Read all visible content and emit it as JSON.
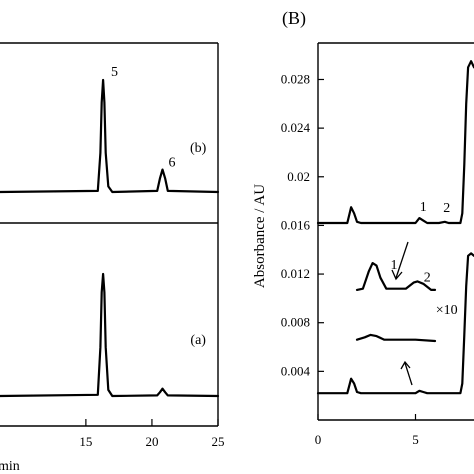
{
  "chart_data": [
    {
      "panel": "A",
      "type": "line",
      "xlabel_fragment": "min",
      "x_ticks": [
        15,
        20,
        25
      ],
      "xlim": [
        8.5,
        25
      ],
      "series": [
        {
          "label": "(b)",
          "x": [
            8.5,
            15.9,
            16.1,
            16.2,
            16.3,
            16.4,
            16.5,
            16.7,
            17.0,
            20.4,
            20.6,
            20.8,
            21.0,
            21.2,
            25
          ],
          "y": [
            0,
            0.01,
            0.35,
            0.8,
            1.0,
            0.8,
            0.35,
            0.05,
            0,
            0.01,
            0.12,
            0.2,
            0.12,
            0.01,
            0
          ]
        },
        {
          "label": "(a)",
          "x": [
            8.5,
            15.9,
            16.1,
            16.2,
            16.3,
            16.4,
            16.5,
            16.7,
            17.0,
            20.4,
            20.6,
            20.8,
            21.0,
            21.2,
            25
          ],
          "y": [
            0,
            0.01,
            0.4,
            0.85,
            1.0,
            0.85,
            0.4,
            0.05,
            0,
            0.005,
            0.03,
            0.06,
            0.03,
            0.005,
            0
          ]
        }
      ],
      "annotations": [
        {
          "text": "5",
          "x": 16.3,
          "series": 0
        },
        {
          "text": "6",
          "x": 20.8,
          "series": 0
        },
        {
          "text": "(b)",
          "x": 23.5,
          "series": 0
        },
        {
          "text": "(a)",
          "x": 23.5,
          "series": 1
        }
      ]
    },
    {
      "panel": "B",
      "title": "(B)",
      "type": "line",
      "ylabel": "Absorbance / AU",
      "xlim": [
        0,
        8
      ],
      "ylim": [
        0,
        0.031
      ],
      "x_ticks": [
        0,
        5
      ],
      "y_ticks": [
        0.004,
        0.008,
        0.012,
        0.016,
        0.02,
        0.024,
        0.028
      ],
      "y_tick_labels": [
        "0.004",
        "0.008",
        "0.012",
        "0.016",
        "0.02",
        "0.024",
        "0.028"
      ],
      "series": [
        {
          "x": [
            0,
            1.5,
            1.7,
            1.85,
            2.0,
            2.2,
            3.0,
            5.0,
            5.2,
            5.4,
            5.6,
            6.2,
            6.5,
            6.7,
            7.3,
            7.4,
            7.5,
            7.6,
            7.7,
            7.85,
            8.0
          ],
          "y": [
            0.0162,
            0.0162,
            0.0175,
            0.017,
            0.0163,
            0.0162,
            0.0162,
            0.0162,
            0.0166,
            0.0164,
            0.0162,
            0.0162,
            0.0163,
            0.0162,
            0.0162,
            0.017,
            0.021,
            0.026,
            0.029,
            0.0295,
            0.029
          ]
        },
        {
          "x": [
            0,
            1.5,
            1.7,
            1.85,
            2.0,
            2.2,
            3.0,
            5.0,
            5.2,
            5.4,
            5.6,
            7.3,
            7.4,
            7.5,
            7.6,
            7.7,
            7.85,
            8.0
          ],
          "y": [
            0.0022,
            0.0022,
            0.0034,
            0.003,
            0.0023,
            0.0022,
            0.0022,
            0.0022,
            0.0024,
            0.0023,
            0.0022,
            0.0022,
            0.003,
            0.007,
            0.011,
            0.0135,
            0.0137,
            0.0135
          ],
          "annotation": "arrow points to this trace near x=4.6"
        }
      ],
      "insets": [
        {
          "label": "×10",
          "x": [
            2.0,
            2.3,
            2.6,
            2.8,
            3.0,
            3.2,
            3.5,
            4.0,
            4.5,
            4.9,
            5.1,
            5.4,
            5.8,
            6.0
          ],
          "y": [
            0.0107,
            0.0108,
            0.0122,
            0.0129,
            0.0127,
            0.0117,
            0.0108,
            0.0108,
            0.0108,
            0.0113,
            0.0114,
            0.0112,
            0.0107,
            0.0107
          ]
        },
        {
          "x": [
            2.0,
            2.4,
            2.7,
            3.0,
            3.4,
            4.0,
            5.0,
            6.0
          ],
          "y": [
            0.0066,
            0.0068,
            0.007,
            0.0069,
            0.0066,
            0.0066,
            0.0066,
            0.0065
          ]
        }
      ],
      "annotations": [
        {
          "text": "1",
          "x": 5.4,
          "y": 0.0172
        },
        {
          "text": "2",
          "x": 6.6,
          "y": 0.0171
        },
        {
          "text": "1",
          "x": 3.9,
          "y": 0.0124
        },
        {
          "text": "2",
          "x": 5.6,
          "y": 0.0114
        },
        {
          "text": "×10",
          "x": 6.6,
          "y": 0.0087
        }
      ]
    }
  ]
}
